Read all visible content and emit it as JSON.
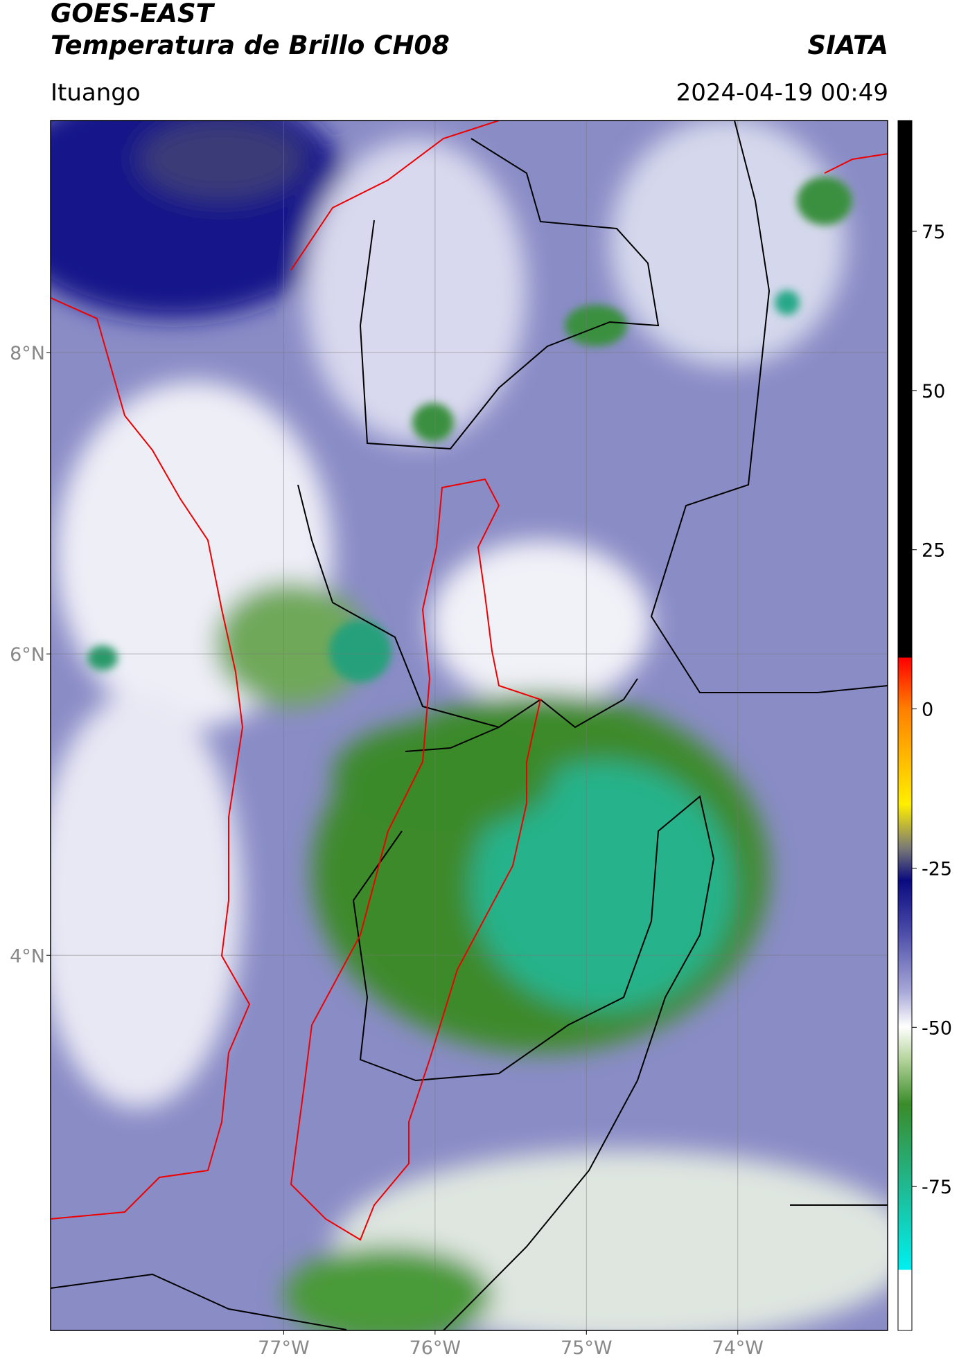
{
  "header": {
    "title": "GOES-EAST",
    "subtitle": "Temperatura de Brillo CH08",
    "org": "SIATA",
    "location": "Ituango",
    "datetime": "2024-04-19 00:49"
  },
  "map": {
    "lat_range": [
      1.51,
      9.54
    ],
    "lon_range": [
      -78.54,
      -73.01
    ],
    "lat_ticks": [
      {
        "value": 8,
        "label": "8°N"
      },
      {
        "value": 6,
        "label": "6°N"
      },
      {
        "value": 4,
        "label": "4°N"
      }
    ],
    "lon_ticks": [
      {
        "value": -77,
        "label": "77°W"
      },
      {
        "value": -76,
        "label": "76°W"
      },
      {
        "value": -75,
        "label": "75°W"
      },
      {
        "value": -74,
        "label": "74°W"
      }
    ]
  },
  "colorbar": {
    "range": [
      -97.6,
      92.4
    ],
    "ticks": [
      75,
      50,
      25,
      0,
      -25,
      -50,
      -75
    ]
  }
}
